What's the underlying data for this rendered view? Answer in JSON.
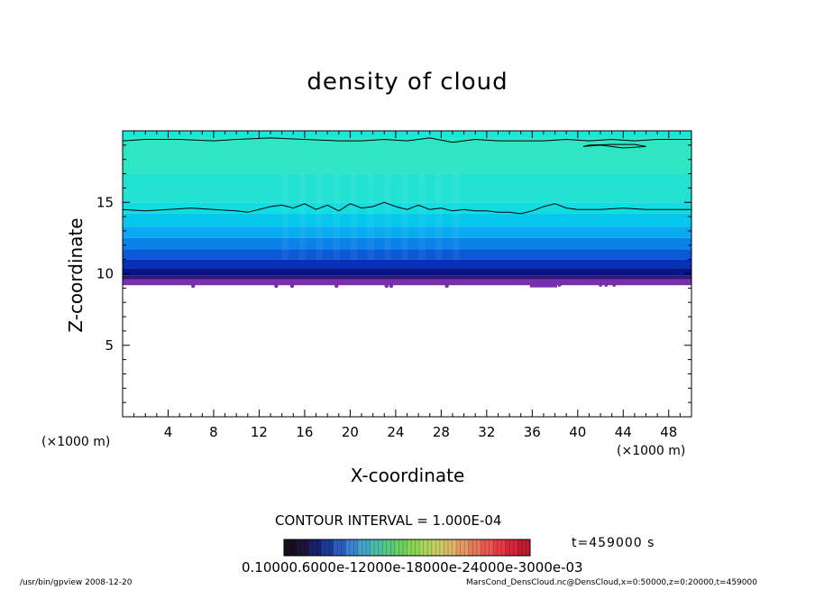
{
  "chart_data": {
    "type": "heatmap",
    "title": "density of cloud",
    "xlabel": "X-coordinate",
    "ylabel": "Z-coordinate",
    "x_unit_left": "(×1000 m)",
    "x_unit_right": "(×1000 m)",
    "xlim": [
      0,
      50
    ],
    "ylim": [
      0,
      20
    ],
    "x_ticks": [
      "4",
      "8",
      "12",
      "16",
      "20",
      "24",
      "28",
      "32",
      "36",
      "40",
      "44",
      "48"
    ],
    "y_ticks": [
      "5",
      "10",
      "15"
    ],
    "field_layers": [
      {
        "z_bottom": 19.5,
        "z_top": 20.0,
        "color": "#18e8d8"
      },
      {
        "z_bottom": 17.0,
        "z_top": 19.5,
        "color": "#2ee6c2"
      },
      {
        "z_bottom": 15.0,
        "z_top": 17.0,
        "color": "#22e2d2"
      },
      {
        "z_bottom": 14.2,
        "z_top": 15.0,
        "color": "#10dde0"
      },
      {
        "z_bottom": 13.3,
        "z_top": 14.2,
        "color": "#06c8ec"
      },
      {
        "z_bottom": 12.5,
        "z_top": 13.3,
        "color": "#08aaf0"
      },
      {
        "z_bottom": 11.7,
        "z_top": 12.5,
        "color": "#0a82e8"
      },
      {
        "z_bottom": 11.0,
        "z_top": 11.7,
        "color": "#0a5ad8"
      },
      {
        "z_bottom": 10.4,
        "z_top": 11.0,
        "color": "#0830b8"
      },
      {
        "z_bottom": 9.9,
        "z_top": 10.4,
        "color": "#061488"
      },
      {
        "z_bottom": 9.6,
        "z_top": 9.9,
        "color": "#301a78"
      },
      {
        "z_bottom": 9.2,
        "z_top": 9.6,
        "color": "#7a2eae"
      }
    ],
    "contour_lines": [
      {
        "x": [
          0,
          2,
          5,
          8,
          10,
          13,
          16,
          19,
          21,
          23,
          25,
          27,
          29,
          31,
          33,
          35,
          37,
          39,
          41,
          43,
          45,
          47,
          50
        ],
        "z": [
          19.3,
          19.4,
          19.4,
          19.3,
          19.4,
          19.5,
          19.4,
          19.3,
          19.3,
          19.4,
          19.3,
          19.5,
          19.2,
          19.4,
          19.3,
          19.3,
          19.3,
          19.4,
          19.3,
          19.4,
          19.3,
          19.4,
          19.4
        ]
      },
      {
        "x": [
          0,
          2,
          4,
          6,
          8,
          10,
          11,
          13,
          14,
          15,
          16,
          17,
          18,
          19,
          20,
          21,
          22,
          23,
          24,
          25,
          26,
          27,
          28,
          29,
          30,
          31,
          32,
          33,
          34,
          35,
          36,
          37,
          38,
          39,
          40,
          41,
          42,
          44,
          46,
          48,
          50
        ],
        "z": [
          14.5,
          14.4,
          14.5,
          14.6,
          14.5,
          14.4,
          14.3,
          14.7,
          14.8,
          14.6,
          14.9,
          14.5,
          14.8,
          14.4,
          14.9,
          14.6,
          14.7,
          15.0,
          14.7,
          14.5,
          14.8,
          14.5,
          14.6,
          14.4,
          14.5,
          14.4,
          14.4,
          14.3,
          14.3,
          14.2,
          14.4,
          14.7,
          14.9,
          14.6,
          14.5,
          14.5,
          14.5,
          14.6,
          14.5,
          14.5,
          14.5
        ]
      }
    ],
    "contour_interval": "CONTOUR INTERVAL = 1.000E-04",
    "time": "t=459000 s",
    "colorbar": {
      "tick_labels": "0.10000.6000e-12000e-18000e-24000e-3000e-03",
      "colors": [
        "#1a0e1e",
        "#1e1438",
        "#18206a",
        "#1a3a98",
        "#2a5cc0",
        "#3a82d2",
        "#44a4c8",
        "#4cbca8",
        "#56c882",
        "#6ad064",
        "#8ad456",
        "#aad45a",
        "#c6cc62",
        "#d8b866",
        "#e29a62",
        "#e6785a",
        "#e85850",
        "#e63a44",
        "#d82438",
        "#c01a30"
      ]
    },
    "footer_left": "/usr/bin/gpview  2008-12-20",
    "footer_right": "MarsCond_DensCloud.nc@DensCloud,x=0:50000,z=0:20000,t=459000",
    "colors": {
      "axis": "#000000",
      "background": "#ffffff",
      "cloud_base": "#7a2eae"
    }
  }
}
